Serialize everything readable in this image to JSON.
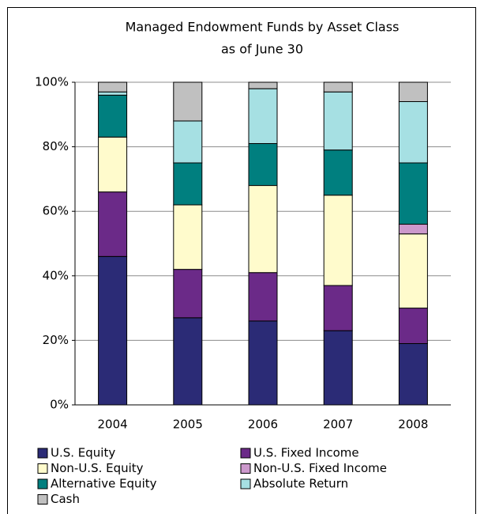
{
  "chart_data": {
    "type": "stacked-bar",
    "title": "Managed Endowment Funds by Asset Class",
    "subtitle": "as of June 30",
    "categories": [
      "2004",
      "2005",
      "2006",
      "2007",
      "2008"
    ],
    "series": [
      {
        "name": "U.S. Equity",
        "color": "#2b2b76",
        "values": [
          46,
          27,
          26,
          23,
          19
        ]
      },
      {
        "name": "U.S. Fixed Income",
        "color": "#6b2a88",
        "values": [
          20,
          15,
          15,
          14,
          11
        ]
      },
      {
        "name": "Non-U.S. Equity",
        "color": "#fffbcc",
        "values": [
          17,
          20,
          27,
          28,
          23
        ]
      },
      {
        "name": "Non-U.S. Fixed Income",
        "color": "#cc99cc",
        "values": [
          0,
          0,
          0,
          0,
          3
        ]
      },
      {
        "name": "Alternative Equity",
        "color": "#007f7f",
        "values": [
          13,
          13,
          13,
          14,
          19
        ]
      },
      {
        "name": "Absolute Return",
        "color": "#a6e0e3",
        "values": [
          1,
          13,
          17,
          18,
          19
        ]
      },
      {
        "name": "Cash",
        "color": "#c0c0c0",
        "values": [
          3,
          12,
          2,
          3,
          6
        ]
      }
    ],
    "ylim": [
      0,
      100
    ],
    "yticks": [
      {
        "value": 0,
        "label": "0%"
      },
      {
        "value": 20,
        "label": "20%"
      },
      {
        "value": 40,
        "label": "40%"
      },
      {
        "value": 60,
        "label": "60%"
      },
      {
        "value": 80,
        "label": "80%"
      },
      {
        "value": 100,
        "label": "100%"
      }
    ],
    "grid": true
  }
}
